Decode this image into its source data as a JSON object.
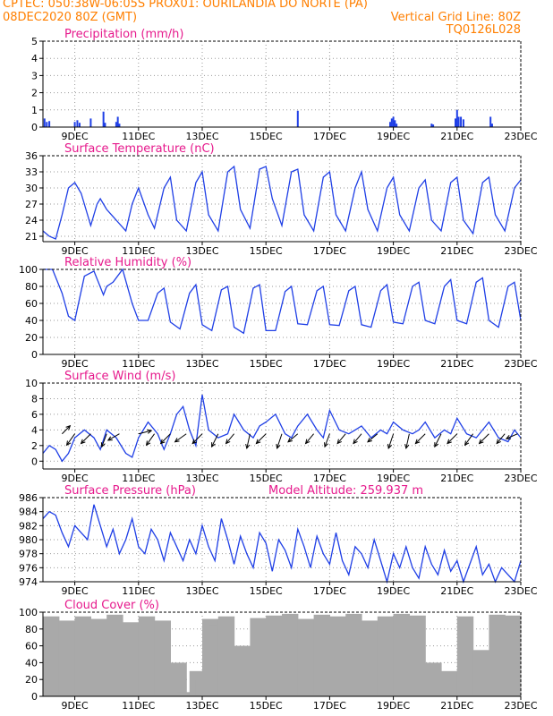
{
  "header": {
    "line1_left": "CPTEC:   050:38W-06:05S   PROX01: OURILANDIA DO NORTE (PA)",
    "line2_left": "08DEC2020 80Z (GMT)",
    "line2_right": "Vertical Grid Line: 80Z",
    "line3_right": "TQ0126L028"
  },
  "colors": {
    "header": "#ff7f00",
    "panel_title": "#e6198c",
    "series": "#1f3fe6",
    "cloud": "#a9a9a9",
    "grid": "#9a9a9a"
  },
  "x_axis": {
    "start_day": 8,
    "end_day": 23,
    "tick_days": [
      9,
      11,
      13,
      15,
      17,
      19,
      21,
      23
    ],
    "tick_labels": [
      "9DEC",
      "11DEC",
      "13DEC",
      "15DEC",
      "17DEC",
      "19DEC",
      "21DEC",
      "23DEC"
    ]
  },
  "chart_data": [
    {
      "type": "bar",
      "title": "Precipitation (mm/h)",
      "ylim": [
        0,
        5
      ],
      "yticks": [
        0,
        1,
        2,
        3,
        4,
        5
      ],
      "x": [
        8.05,
        8.12,
        8.2,
        9.0,
        9.08,
        9.15,
        9.5,
        9.9,
        9.95,
        10.3,
        10.35,
        10.4,
        16.0,
        18.9,
        18.95,
        19.0,
        19.05,
        19.1,
        20.2,
        20.25,
        20.95,
        21.0,
        21.05,
        21.12,
        21.2,
        22.05,
        22.1
      ],
      "values": [
        0.5,
        0.3,
        0.35,
        0.3,
        0.4,
        0.25,
        0.5,
        0.9,
        0.25,
        0.3,
        0.6,
        0.2,
        0.95,
        0.3,
        0.5,
        0.6,
        0.4,
        0.2,
        0.2,
        0.15,
        0.5,
        1.0,
        0.6,
        0.6,
        0.45,
        0.6,
        0.2
      ],
      "grid": true
    },
    {
      "type": "line",
      "title": "Surface Temperature (nC)",
      "ylim": [
        20,
        36
      ],
      "yticks": [
        21,
        24,
        27,
        30,
        33,
        36
      ],
      "x": [
        8.0,
        8.2,
        8.4,
        8.6,
        8.8,
        9.0,
        9.2,
        9.5,
        9.7,
        9.8,
        10.0,
        10.3,
        10.6,
        10.8,
        11.0,
        11.3,
        11.5,
        11.8,
        12.0,
        12.2,
        12.5,
        12.8,
        13.0,
        13.2,
        13.5,
        13.8,
        14.0,
        14.2,
        14.5,
        14.8,
        15.0,
        15.2,
        15.5,
        15.8,
        16.0,
        16.2,
        16.5,
        16.8,
        17.0,
        17.2,
        17.5,
        17.8,
        18.0,
        18.2,
        18.5,
        18.8,
        19.0,
        19.2,
        19.5,
        19.8,
        20.0,
        20.2,
        20.5,
        20.8,
        21.0,
        21.2,
        21.5,
        21.8,
        22.0,
        22.2,
        22.5,
        22.8,
        23.0
      ],
      "values": [
        22,
        21,
        20.5,
        25,
        30,
        31,
        29,
        23,
        27,
        28,
        26,
        24,
        22,
        27,
        30,
        25,
        22.5,
        30,
        32,
        24,
        22,
        31,
        33,
        25,
        22,
        33,
        34,
        26,
        22.5,
        33.5,
        34,
        28,
        23,
        33,
        33.5,
        25,
        22,
        32,
        33,
        25,
        22,
        30,
        33,
        26,
        22,
        30,
        32,
        25,
        22,
        30,
        31.5,
        24,
        22,
        31,
        32,
        24,
        21.5,
        31,
        32,
        25,
        22,
        30,
        31.5
      ],
      "grid": true
    },
    {
      "type": "line",
      "title": "Relative Humidity (%)",
      "ylim": [
        0,
        100
      ],
      "yticks": [
        0,
        20,
        40,
        60,
        80,
        100
      ],
      "x": [
        8.0,
        8.3,
        8.6,
        8.8,
        9.0,
        9.3,
        9.6,
        9.9,
        10.0,
        10.2,
        10.5,
        10.8,
        11.0,
        11.3,
        11.6,
        11.8,
        12.0,
        12.3,
        12.6,
        12.8,
        13.0,
        13.3,
        13.6,
        13.8,
        14.0,
        14.3,
        14.6,
        14.8,
        15.0,
        15.3,
        15.6,
        15.8,
        16.0,
        16.3,
        16.6,
        16.8,
        17.0,
        17.3,
        17.6,
        17.8,
        18.0,
        18.3,
        18.6,
        18.8,
        19.0,
        19.3,
        19.6,
        19.8,
        20.0,
        20.3,
        20.6,
        20.8,
        21.0,
        21.3,
        21.6,
        21.8,
        22.0,
        22.3,
        22.6,
        22.8,
        23.0
      ],
      "values": [
        100,
        100,
        72,
        45,
        40,
        92,
        98,
        70,
        80,
        85,
        100,
        60,
        40,
        40,
        72,
        78,
        38,
        30,
        72,
        82,
        35,
        28,
        76,
        80,
        32,
        25,
        78,
        82,
        28,
        28,
        74,
        80,
        36,
        35,
        75,
        80,
        35,
        34,
        75,
        80,
        35,
        32,
        75,
        82,
        38,
        36,
        80,
        85,
        40,
        36,
        80,
        88,
        40,
        36,
        85,
        90,
        40,
        32,
        80,
        85,
        40
      ],
      "grid": true
    },
    {
      "type": "line",
      "title": "Surface Wind (m/s)",
      "ylim": [
        -1,
        10
      ],
      "yticks": [
        0,
        2,
        4,
        6,
        8,
        10
      ],
      "x": [
        8.0,
        8.2,
        8.4,
        8.6,
        8.8,
        9.0,
        9.3,
        9.6,
        9.8,
        10.0,
        10.3,
        10.6,
        10.8,
        11.0,
        11.3,
        11.6,
        11.8,
        12.0,
        12.2,
        12.4,
        12.6,
        12.8,
        13.0,
        13.2,
        13.5,
        13.8,
        14.0,
        14.3,
        14.6,
        14.8,
        15.0,
        15.3,
        15.6,
        15.8,
        16.0,
        16.3,
        16.6,
        16.8,
        17.0,
        17.3,
        17.6,
        17.8,
        18.0,
        18.3,
        18.6,
        18.8,
        19.0,
        19.3,
        19.6,
        19.8,
        20.0,
        20.3,
        20.6,
        20.8,
        21.0,
        21.3,
        21.6,
        21.8,
        22.0,
        22.3,
        22.6,
        22.8,
        23.0
      ],
      "values": [
        1,
        2,
        1.5,
        0,
        1,
        3,
        4,
        3,
        1.5,
        4,
        3,
        1,
        0.5,
        3,
        5,
        3.5,
        1.5,
        3.5,
        6,
        7,
        4,
        2,
        8.5,
        4,
        3,
        3.5,
        6,
        4,
        3,
        4.5,
        5,
        6,
        3.5,
        3,
        4.5,
        6,
        4,
        3,
        6.5,
        4,
        3.5,
        4,
        4.5,
        3,
        4,
        3.5,
        5,
        4,
        3.5,
        4,
        5,
        3,
        4,
        3.5,
        5.5,
        3.5,
        3,
        4,
        5,
        3,
        2.5,
        4,
        3
      ],
      "arrows": [
        {
          "x": 8.6,
          "u": 0.5,
          "v": 0.5
        },
        {
          "x": 9.0,
          "u": -0.5,
          "v": -0.7
        },
        {
          "x": 9.5,
          "u": -0.6,
          "v": -0.6
        },
        {
          "x": 10.0,
          "u": -0.3,
          "v": -0.8
        },
        {
          "x": 10.4,
          "u": -0.7,
          "v": -0.4
        },
        {
          "x": 11.0,
          "u": 0.8,
          "v": 0.2
        },
        {
          "x": 11.5,
          "u": -0.5,
          "v": -0.7
        },
        {
          "x": 12.0,
          "u": -0.6,
          "v": -0.6
        },
        {
          "x": 12.5,
          "u": -0.7,
          "v": -0.5
        },
        {
          "x": 13.0,
          "u": -0.6,
          "v": -0.6
        },
        {
          "x": 13.5,
          "u": -0.4,
          "v": -0.8
        },
        {
          "x": 14.0,
          "u": -0.5,
          "v": -0.6
        },
        {
          "x": 14.5,
          "u": -0.2,
          "v": -0.9
        },
        {
          "x": 15.0,
          "u": -0.6,
          "v": -0.6
        },
        {
          "x": 15.5,
          "u": -0.3,
          "v": -0.9
        },
        {
          "x": 16.0,
          "u": -0.6,
          "v": -0.5
        },
        {
          "x": 16.5,
          "u": -0.5,
          "v": -0.6
        },
        {
          "x": 17.0,
          "u": -0.3,
          "v": -0.8
        },
        {
          "x": 17.5,
          "u": -0.5,
          "v": -0.6
        },
        {
          "x": 18.0,
          "u": -0.5,
          "v": -0.6
        },
        {
          "x": 18.5,
          "u": -0.6,
          "v": -0.5
        },
        {
          "x": 19.0,
          "u": -0.3,
          "v": -0.9
        },
        {
          "x": 19.5,
          "u": -0.2,
          "v": -0.9
        },
        {
          "x": 20.0,
          "u": -0.6,
          "v": -0.6
        },
        {
          "x": 20.5,
          "u": -0.4,
          "v": -0.8
        },
        {
          "x": 21.0,
          "u": -0.6,
          "v": -0.6
        },
        {
          "x": 21.5,
          "u": -0.5,
          "v": -0.7
        },
        {
          "x": 22.0,
          "u": -0.6,
          "v": -0.6
        },
        {
          "x": 22.5,
          "u": -0.5,
          "v": -0.6
        },
        {
          "x": 22.9,
          "u": -0.7,
          "v": -0.3
        }
      ],
      "grid": true
    },
    {
      "type": "line",
      "title": "Surface Pressure (hPa)",
      "subtitle": "Model Altitude: 259.937  m",
      "ylim": [
        974,
        986
      ],
      "yticks": [
        974,
        976,
        978,
        980,
        982,
        984,
        986
      ],
      "x": [
        8.0,
        8.2,
        8.4,
        8.6,
        8.8,
        9.0,
        9.2,
        9.4,
        9.6,
        9.8,
        10.0,
        10.2,
        10.4,
        10.6,
        10.8,
        11.0,
        11.2,
        11.4,
        11.6,
        11.8,
        12.0,
        12.2,
        12.4,
        12.6,
        12.8,
        13.0,
        13.2,
        13.4,
        13.6,
        13.8,
        14.0,
        14.2,
        14.4,
        14.6,
        14.8,
        15.0,
        15.2,
        15.4,
        15.6,
        15.8,
        16.0,
        16.2,
        16.4,
        16.6,
        16.8,
        17.0,
        17.2,
        17.4,
        17.6,
        17.8,
        18.0,
        18.2,
        18.4,
        18.6,
        18.8,
        19.0,
        19.2,
        19.4,
        19.6,
        19.8,
        20.0,
        20.2,
        20.4,
        20.6,
        20.8,
        21.0,
        21.2,
        21.4,
        21.6,
        21.8,
        22.0,
        22.2,
        22.4,
        22.6,
        22.8,
        23.0
      ],
      "values": [
        983,
        984,
        983.5,
        981,
        979,
        982,
        981,
        980,
        985,
        982,
        979,
        981.5,
        978,
        980,
        983,
        979,
        978,
        981.5,
        980,
        977,
        981,
        979,
        977,
        980,
        978,
        982,
        979,
        977,
        983,
        980,
        976.5,
        980.5,
        978,
        976,
        981,
        979.5,
        975.5,
        980,
        978.5,
        976,
        981.5,
        979,
        976,
        980.5,
        978,
        976.5,
        981,
        977,
        975,
        979,
        978,
        976,
        980,
        977,
        974,
        978,
        976,
        979,
        976,
        974.5,
        979,
        976.5,
        975,
        978.5,
        975.5,
        977,
        974,
        976.5,
        979,
        975,
        976.5,
        974,
        976,
        975,
        974,
        977
      ],
      "grid": true
    },
    {
      "type": "bar",
      "title": "Cloud Cover (%)",
      "ylim": [
        0,
        100
      ],
      "yticks": [
        0,
        20,
        40,
        60,
        80,
        100
      ],
      "x": [
        8.0,
        8.5,
        9.0,
        9.5,
        10.0,
        10.5,
        11.0,
        11.5,
        12.0,
        12.2,
        12.4,
        12.6,
        12.8,
        13.0,
        13.2,
        13.5,
        14.0,
        14.5,
        15.0,
        15.5,
        16.0,
        16.5,
        17.0,
        17.5,
        18.0,
        18.5,
        19.0,
        19.5,
        20.0,
        20.5,
        21.0,
        21.5,
        22.0,
        22.5
      ],
      "values": [
        95,
        90,
        95,
        92,
        97,
        88,
        95,
        90,
        40,
        5,
        2,
        30,
        20,
        92,
        85,
        95,
        60,
        93,
        96,
        98,
        92,
        97,
        95,
        98,
        90,
        95,
        98,
        96,
        40,
        30,
        95,
        55,
        97,
        96
      ],
      "grid": true
    }
  ]
}
